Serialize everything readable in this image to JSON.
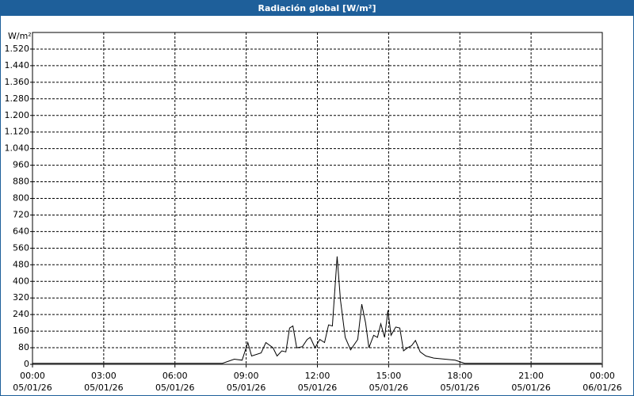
{
  "chart_data": {
    "type": "line",
    "title": "Radiación global [W/m²]",
    "y_label": "W/m²",
    "x": [
      0,
      8.0,
      8.5,
      8.83,
      9.07,
      9.23,
      9.63,
      9.83,
      10.13,
      10.3,
      10.5,
      10.67,
      10.83,
      10.97,
      11.13,
      11.37,
      11.57,
      11.7,
      11.9,
      12.1,
      12.3,
      12.47,
      12.63,
      12.83,
      12.97,
      13.17,
      13.4,
      13.7,
      13.87,
      14.03,
      14.17,
      14.37,
      14.53,
      14.67,
      14.83,
      14.97,
      15.1,
      15.3,
      15.47,
      15.63,
      15.8,
      15.97,
      16.13,
      16.33,
      16.57,
      16.9,
      17.37,
      17.8,
      18.2,
      23.97
    ],
    "series": [
      {
        "name": "Radiación global",
        "color": "#000000",
        "values": [
          5,
          5,
          25,
          20,
          105,
          40,
          55,
          105,
          80,
          40,
          65,
          60,
          175,
          185,
          80,
          85,
          120,
          130,
          80,
          120,
          105,
          190,
          185,
          520,
          310,
          130,
          70,
          120,
          290,
          200,
          80,
          140,
          130,
          195,
          130,
          260,
          140,
          180,
          175,
          65,
          80,
          90,
          115,
          60,
          40,
          30,
          25,
          20,
          5,
          5
        ]
      }
    ],
    "xlim": [
      0,
      24
    ],
    "xticks": [
      {
        "value": 0,
        "label": "00:00",
        "date": "05/01/26"
      },
      {
        "value": 3,
        "label": "03:00",
        "date": "05/01/26"
      },
      {
        "value": 6,
        "label": "06:00",
        "date": "05/01/26"
      },
      {
        "value": 9,
        "label": "09:00",
        "date": "05/01/26"
      },
      {
        "value": 12,
        "label": "12:00",
        "date": "05/01/26"
      },
      {
        "value": 15,
        "label": "15:00",
        "date": "05/01/26"
      },
      {
        "value": 18,
        "label": "18:00",
        "date": "05/01/26"
      },
      {
        "value": 21,
        "label": "21:00",
        "date": "05/01/26"
      },
      {
        "value": 24,
        "label": "00:00",
        "date": "06/01/26"
      }
    ],
    "ylim": [
      0,
      1600
    ],
    "yticks": [
      0,
      80,
      160,
      240,
      320,
      400,
      480,
      560,
      640,
      720,
      800,
      880,
      960,
      {
        "value": 1040,
        "label": "1.040"
      },
      {
        "value": 1120,
        "label": "1.120"
      },
      {
        "value": 1200,
        "label": "1.200"
      },
      {
        "value": 1280,
        "label": "1.280"
      },
      {
        "value": 1360,
        "label": "1.360"
      },
      {
        "value": 1440,
        "label": "1.440"
      },
      {
        "value": 1520,
        "label": "1.520"
      }
    ],
    "grid": true
  }
}
